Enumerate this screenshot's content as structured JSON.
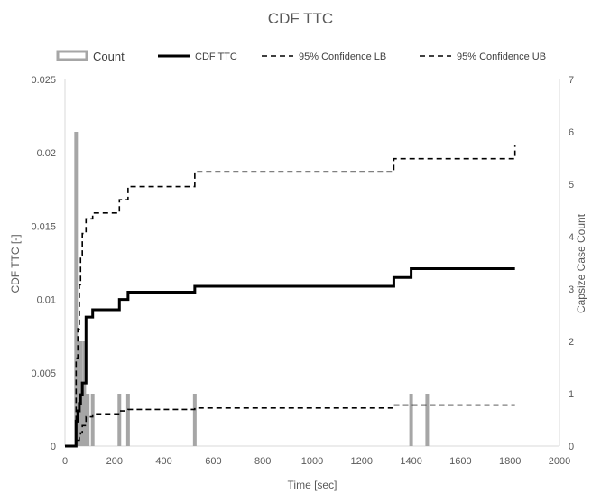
{
  "chart_data": {
    "type": "line",
    "title": "CDF TTC",
    "xlabel": "Time [sec]",
    "ylabel": "CDF TTC  [-]",
    "y2label": "Capsize Case Count",
    "xlim": [
      0,
      2000
    ],
    "ylim": [
      0,
      0.025
    ],
    "y2lim": [
      0,
      7
    ],
    "x_ticks": [
      "0",
      "200",
      "400",
      "600",
      "800",
      "1000",
      "1200",
      "1400",
      "1600",
      "1800",
      "2000"
    ],
    "y_ticks": [
      "0",
      "0.005",
      "0.01",
      "0.015",
      "0.02",
      "0.025"
    ],
    "y2_ticks": [
      "0",
      "1",
      "2",
      "3",
      "4",
      "5",
      "6",
      "7"
    ],
    "grid": false,
    "legend_position": "top",
    "bars": {
      "name": "Count",
      "axis": "y2",
      "color": "#a6a6a6",
      "x": [
        45,
        52,
        58,
        63,
        70,
        78,
        85,
        92,
        112,
        220,
        255,
        525,
        1400,
        1465
      ],
      "values": [
        6,
        2,
        1,
        2,
        1,
        2,
        1,
        1,
        1,
        1,
        1,
        1,
        1,
        1
      ]
    },
    "series": [
      {
        "name": "CDF TTC",
        "style": "solid-thick",
        "color": "#000000",
        "x": [
          0,
          40,
          45,
          52,
          58,
          63,
          70,
          85,
          112,
          200,
          220,
          255,
          480,
          525,
          1270,
          1330,
          1400,
          1820
        ],
        "y": [
          0,
          0,
          0.0017,
          0.0024,
          0.0029,
          0.0035,
          0.0043,
          0.0088,
          0.0093,
          0.0093,
          0.01,
          0.0105,
          0.0105,
          0.0109,
          0.0109,
          0.0115,
          0.0121,
          0.0121
        ]
      },
      {
        "name": "95% Confidence LB",
        "style": "dashed",
        "color": "#000000",
        "x": [
          0,
          40,
          45,
          52,
          58,
          63,
          70,
          85,
          112,
          220,
          255,
          525,
          1270,
          1330,
          1820
        ],
        "y": [
          0,
          0,
          0.0002,
          0.0004,
          0.0006,
          0.0009,
          0.0014,
          0.002,
          0.0022,
          0.0024,
          0.0025,
          0.0026,
          0.0026,
          0.0028,
          0.0028
        ]
      },
      {
        "name": "95% Confidence UB",
        "style": "dashed",
        "color": "#000000",
        "x": [
          0,
          40,
          45,
          52,
          58,
          63,
          70,
          85,
          112,
          200,
          220,
          255,
          480,
          525,
          1270,
          1330,
          1820
        ],
        "y": [
          0,
          0,
          0.006,
          0.008,
          0.011,
          0.013,
          0.0145,
          0.0155,
          0.0159,
          0.0159,
          0.0168,
          0.0177,
          0.0177,
          0.0187,
          0.0187,
          0.0196,
          0.0205
        ]
      }
    ]
  }
}
